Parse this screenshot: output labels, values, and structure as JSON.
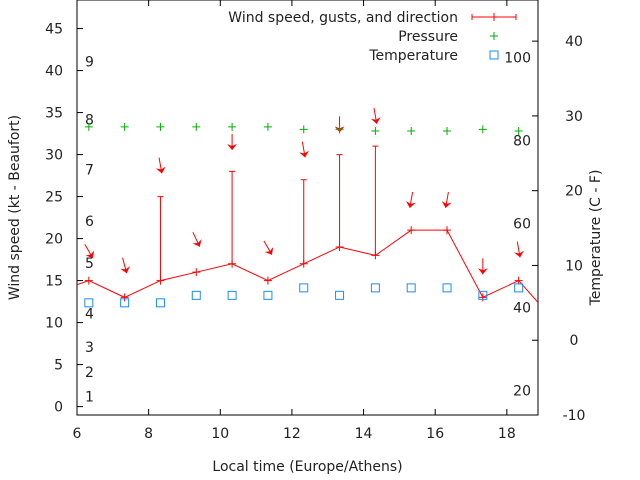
{
  "chart_data": {
    "type": "line",
    "xlabel": "Local time (Europe/Athens)",
    "ylabel": "Wind speed (kt - Beaufort)",
    "y2label": "Temperature (C - F)",
    "xlim": [
      6,
      18.87
    ],
    "ylim": [
      -1,
      48.4
    ],
    "y2lim": [
      -10,
      45.5
    ],
    "xticks": [
      6,
      8,
      10,
      12,
      14,
      16,
      18
    ],
    "yticks": [
      0,
      5,
      10,
      15,
      20,
      25,
      30,
      35,
      40,
      45
    ],
    "y2ticks": [
      -10,
      0,
      10,
      20,
      30,
      40
    ],
    "beaufort_labels": [
      {
        "label": "1",
        "y": 1.2
      },
      {
        "label": "2",
        "y": 4.1
      },
      {
        "label": "3",
        "y": 7.1
      },
      {
        "label": "4",
        "y": 11.1
      },
      {
        "label": "5",
        "y": 17.1
      },
      {
        "label": "6",
        "y": 22.1
      },
      {
        "label": "7",
        "y": 28.2
      },
      {
        "label": "8",
        "y": 34.2
      },
      {
        "label": "9",
        "y": 41.1
      }
    ],
    "fahrenheit_labels": [
      {
        "label": "100",
        "c": 37.8
      },
      {
        "label": "80",
        "c": 26.7
      },
      {
        "label": "60",
        "c": 15.6
      },
      {
        "label": "40",
        "c": 4.4
      },
      {
        "label": "20",
        "c": -6.7
      }
    ],
    "legend": [
      {
        "label": "Wind speed, gusts, and direction",
        "color": "#ff0000"
      },
      {
        "label": "Pressure",
        "color": "#00b000"
      },
      {
        "label": "Temperature",
        "color": "#1a8cff"
      }
    ],
    "legend_position": "top-right",
    "x": [
      6.33,
      7.33,
      8.33,
      9.33,
      10.33,
      11.33,
      12.33,
      13.33,
      14.33,
      15.33,
      16.33,
      17.33,
      18.33
    ],
    "series": [
      {
        "name": "Wind speed",
        "axis": "y",
        "values": [
          15,
          13,
          15,
          16,
          17,
          15,
          17,
          19,
          18,
          21,
          21,
          13,
          15
        ]
      },
      {
        "name": "Gusts",
        "axis": "y",
        "values": [
          null,
          null,
          25,
          null,
          28,
          null,
          27,
          30,
          31,
          null,
          null,
          null,
          null
        ]
      },
      {
        "name": "Direction arrow level",
        "axis": "y",
        "values": [
          18.5,
          16.8,
          28.7,
          19.9,
          31.5,
          18.9,
          30.6,
          33.6,
          34.6,
          24.6,
          24.6,
          16.7,
          18.7
        ],
        "tilt_deg": [
          -30,
          -15,
          -10,
          -25,
          0,
          -30,
          -10,
          0,
          -10,
          10,
          10,
          0,
          -10
        ]
      },
      {
        "name": "Pressure",
        "axis": "y",
        "values": [
          33.3,
          33.3,
          33.3,
          33.3,
          33.3,
          33.3,
          33.0,
          33.0,
          32.8,
          32.8,
          32.8,
          33.0,
          32.8
        ]
      },
      {
        "name": "Temperature",
        "axis": "y2",
        "values": [
          5,
          5,
          5,
          6,
          6,
          6,
          7,
          6,
          7,
          7,
          7,
          6,
          7
        ]
      }
    ],
    "line_extend": {
      "left": 14.5,
      "right": 12.4
    }
  }
}
